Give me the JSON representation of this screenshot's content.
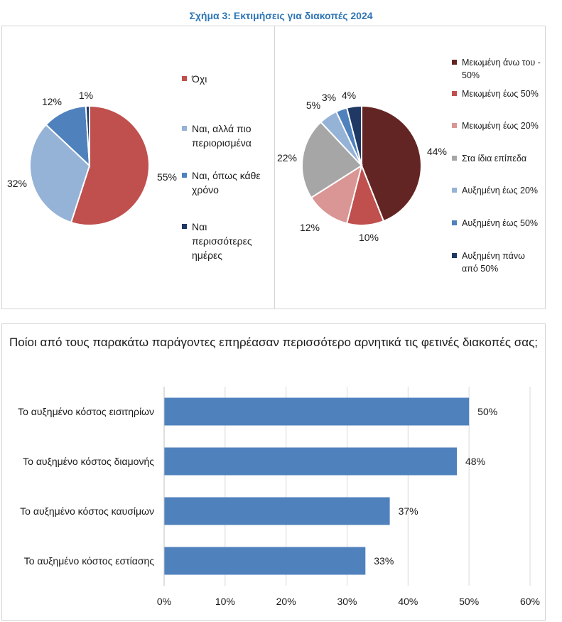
{
  "figure_title": "Σχήμα 3: Εκτιμήσεις για διακοπές 2024",
  "chart_data": [
    {
      "type": "pie",
      "categories": [
        "Όχι",
        "Ναι, αλλά πιο περιορισμένα",
        "Ναι, όπως κάθε χρόνο",
        "Ναι περισσότερες ημέρες"
      ],
      "values": [
        55,
        32,
        12,
        1
      ],
      "labels": [
        "55%",
        "32%",
        "12%",
        "1%"
      ],
      "colors": [
        "#c0504d",
        "#95b3d7",
        "#4f81bd",
        "#1f3864"
      ],
      "legend": "right"
    },
    {
      "type": "pie",
      "categories": [
        "Μειωμένη άνω του - 50%",
        "Μειωμένη έως 50%",
        "Μειωμένη έως 20%",
        "Στα ίδια επίπεδα",
        "Αυξημένη έως 20%",
        "Αυξημένη έως 50%",
        "Αυξημένη πάνω από 50%"
      ],
      "values": [
        44,
        10,
        12,
        22,
        5,
        3,
        4
      ],
      "labels": [
        "44%",
        "10%",
        "12%",
        "22%",
        "5%",
        "3%",
        "4%"
      ],
      "colors": [
        "#632523",
        "#c0504d",
        "#d99694",
        "#a6a6a6",
        "#95b3d7",
        "#4f81bd",
        "#1f3864"
      ],
      "legend": "right"
    },
    {
      "type": "bar",
      "orientation": "horizontal",
      "title": "Ποίοι από τους παρακάτω παράγοντες επηρέασαν περισσότερο αρνητικά τις φετινές διακοπές σας;",
      "categories": [
        "Το αυξημένο κόστος εισιτηρίων",
        "Το αυξημένο κόστος διαμονής",
        "Το αυξημένο κόστος καυσίμων",
        "Το αυξημένο κόστος εστίασης"
      ],
      "values": [
        50,
        48,
        37,
        33
      ],
      "labels": [
        "50%",
        "48%",
        "37%",
        "33%"
      ],
      "xlim": [
        0,
        60
      ],
      "ticks": [
        "0%",
        "10%",
        "20%",
        "30%",
        "40%",
        "50%",
        "60%"
      ],
      "color": "#4f81bd",
      "grid": true
    }
  ]
}
